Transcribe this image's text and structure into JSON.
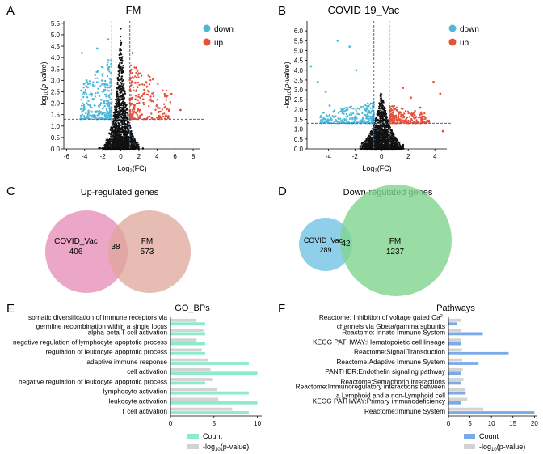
{
  "colors": {
    "down": "#4fb8d8",
    "up": "#e5513b",
    "ns": "#111111",
    "threshold": "#2f6fc0",
    "venn_cov_up": "#e68ab5",
    "venn_fm_up": "#dea59a",
    "venn_cov_down": "#7cc7e6",
    "venn_fm_down": "#7fd48f",
    "go_count": "#8eebc9",
    "go_log": "#d3d3d3",
    "pw_count": "#7aaaea",
    "pw_log": "#d3d3d3"
  },
  "panels": {
    "A": {
      "letter": "A",
      "title": "FM"
    },
    "B": {
      "letter": "B",
      "title": "COVID-19_Vac"
    },
    "C": {
      "letter": "C",
      "title": "Up-regulated genes"
    },
    "D": {
      "letter": "D",
      "title": "Down-regulated genes"
    },
    "E": {
      "letter": "E",
      "title": "GO_BPs"
    },
    "F": {
      "letter": "F",
      "title": "Pathways"
    }
  },
  "chart_data": [
    {
      "id": "A",
      "type": "scatter",
      "title": "FM",
      "xlabel": "Log2(FC)",
      "ylabel": "-log10(p-value)",
      "xlim": [
        -6.3,
        8.8
      ],
      "ylim": [
        0,
        5.6
      ],
      "xticks": [
        -6,
        -4,
        -2,
        0,
        2,
        4,
        6,
        8
      ],
      "yticks": [
        0.0,
        0.5,
        1.0,
        1.5,
        2.0,
        2.5,
        3.0,
        3.5,
        4.0,
        4.5,
        5.0,
        5.5
      ],
      "thresholds": {
        "x": [
          -1,
          1
        ],
        "y": 1.3
      },
      "legend": [
        "down",
        "up"
      ],
      "seed": 11,
      "spread": {
        "down_x": [
          -4.5,
          -1
        ],
        "up_x": [
          1,
          5.5
        ],
        "ns_x": [
          -5.2,
          6.2
        ],
        "peak_y": 5.4
      },
      "series": [
        {
          "name": "down",
          "points": [
            [
              -4.3,
              4.2
            ],
            [
              -3.8,
              3.0
            ],
            [
              -2.6,
              4.4
            ],
            [
              -2.1,
              3.6
            ],
            [
              -1.4,
              4.8
            ],
            [
              -3.2,
              2.4
            ],
            [
              -2.9,
              1.9
            ],
            [
              -1.7,
              2.7
            ]
          ]
        },
        {
          "name": "up",
          "points": [
            [
              1.3,
              4.2
            ],
            [
              2.5,
              2.4
            ],
            [
              3.4,
              2.1
            ],
            [
              4.1,
              1.8
            ],
            [
              5.6,
              2.4
            ],
            [
              6.6,
              1.7
            ],
            [
              2.1,
              3.3
            ],
            [
              1.6,
              2.9
            ]
          ]
        }
      ]
    },
    {
      "id": "B",
      "type": "scatter",
      "title": "COVID-19_Vac",
      "xlabel": "Log2(FC)",
      "ylabel": "-log10(p-value)",
      "xlim": [
        -5.6,
        4.9
      ],
      "ylim": [
        0,
        6.5
      ],
      "xticks": [
        -4,
        -2,
        0,
        2,
        4
      ],
      "yticks": [
        0.0,
        0.5,
        1.0,
        1.5,
        2.0,
        2.5,
        3.0,
        3.5,
        4.0,
        4.5,
        5.0,
        5.5,
        6.0
      ],
      "thresholds": {
        "x": [
          -0.58,
          0.58
        ],
        "y": 1.3
      },
      "legend": [
        "down",
        "up"
      ],
      "seed": 23,
      "spread": {
        "down_x": [
          -4.6,
          -0.58
        ],
        "up_x": [
          0.58,
          3.6
        ],
        "ns_x": [
          -5.0,
          4.2
        ],
        "peak_y": 3.2
      },
      "series": [
        {
          "name": "down",
          "points": [
            [
              -5.3,
              4.2
            ],
            [
              -4.8,
              3.4
            ],
            [
              -4.2,
              2.9
            ],
            [
              -3.3,
              5.5
            ],
            [
              -2.4,
              5.2
            ],
            [
              -3.9,
              2.2
            ],
            [
              -2.8,
              1.9
            ],
            [
              -1.9,
              4.0
            ]
          ]
        },
        {
          "name": "up",
          "points": [
            [
              3.9,
              3.4
            ],
            [
              4.4,
              2.8
            ],
            [
              4.6,
              0.9
            ],
            [
              2.2,
              2.6
            ],
            [
              1.6,
              3.1
            ],
            [
              2.9,
              2.1
            ],
            [
              1.2,
              1.9
            ],
            [
              3.3,
              1.6
            ]
          ]
        }
      ]
    },
    {
      "id": "E",
      "type": "bar",
      "orientation": "horizontal",
      "title": "GO_BPs",
      "xlim": [
        0,
        10.5
      ],
      "xticks": [
        0,
        5,
        10
      ],
      "categories": [
        "somatic diversification of immune receptors via germline recombination within a single locus",
        "alpha-beta T cell activation",
        "negative regulation of lymphocyte apoptotic process",
        "regulation of leukocyte apoptotic process",
        "adaptive immune response",
        "cell activation",
        "negative regulation of leukocyte apoptotic process",
        "lymphocyte activation",
        "leukocyte activation",
        "T cell activation"
      ],
      "series": [
        {
          "name": "Count",
          "values": [
            4,
            4,
            4,
            4,
            9,
            10,
            4,
            9,
            10,
            9
          ]
        },
        {
          "name": "-log10(p-value)",
          "values": [
            3.0,
            3.8,
            3.0,
            3.6,
            4.3,
            4.6,
            4.8,
            5.3,
            5.5,
            7.1
          ]
        }
      ]
    },
    {
      "id": "F",
      "type": "bar",
      "orientation": "horizontal",
      "title": "Pathways",
      "xlim": [
        0,
        20.5
      ],
      "xticks": [
        0,
        5,
        10,
        15,
        20
      ],
      "categories": [
        "Reactome: Inhibition of voltage gated Ca2+ channels via Gbeta/gamma subunits",
        "Reactome: Innate Immune System",
        "KEGG PATHWAY:Hematopoietic cell lineage",
        "Reactome:Signal Transduction",
        "Reactome:Adaptive Immune System",
        "PANTHER:Endothelin signaling pathway",
        "Reactome:Semaphorin interactions",
        "Reactome:Immunoregulatory interactions between a Lymphoid and a non-Lymphoid cell",
        "KEGG PATHWAY:Primary immunodeficiency",
        "Reactome:Immune System"
      ],
      "series": [
        {
          "name": "Count",
          "values": [
            2,
            8,
            3,
            14,
            7,
            3,
            3,
            4,
            3,
            20
          ]
        },
        {
          "name": "-log10(p-value)",
          "values": [
            3.0,
            3.0,
            3.0,
            3.1,
            3.2,
            3.3,
            3.5,
            3.8,
            4.4,
            8.1
          ]
        }
      ]
    }
  ],
  "venn": {
    "C": {
      "left_label": "COVID_Vac",
      "left_count": "406",
      "overlap": "38",
      "right_label": "FM",
      "right_count": "573"
    },
    "D": {
      "left_label": "COVID_Vac",
      "left_count": "289",
      "overlap": "42",
      "right_label": "FM",
      "right_count": "1237"
    }
  },
  "go_labels": [
    [
      "somatic diversification of immune receptors via",
      "germline recombination within a single locus"
    ],
    [
      "alpha-beta T cell activation"
    ],
    [
      "negative regulation of lymphocyte apoptotic process"
    ],
    [
      "regulation of leukocyte apoptotic process"
    ],
    [
      "adaptive immune response"
    ],
    [
      "cell activation"
    ],
    [
      "negative regulation of leukocyte apoptotic process"
    ],
    [
      "lymphocyte activation"
    ],
    [
      "leukocyte activation"
    ],
    [
      "T cell activation"
    ]
  ],
  "pw_labels": [
    [
      "Reactome: Inhibition of voltage gated Ca",
      "channels via Gbeta/gamma subunits"
    ],
    [
      "Reactome: Innate Immune System"
    ],
    [
      "KEGG PATHWAY:Hematopoietic cell lineage"
    ],
    [
      "Reactome:Signal Transduction"
    ],
    [
      "Reactome:Adaptive Immune System"
    ],
    [
      "PANTHER:Endothelin signaling pathway"
    ],
    [
      "Reactome:Semaphorin interactions"
    ],
    [
      "Reactome:Immunoregulatory interactions between",
      "a Lymphoid and a non-Lymphoid cell"
    ],
    [
      "KEGG PATHWAY:Primary immunodeficiency"
    ],
    [
      "Reactome:Immune System"
    ]
  ],
  "ca_superscript": "2+",
  "legend_count": "Count",
  "legend_log_prefix": "-log",
  "legend_log_sub": "10",
  "legend_log_suffix": "(p-value)",
  "volcano_ylabel": {
    "a": "-log",
    "sub": "10",
    "b": "(",
    "italic": "p-value",
    "c": ")"
  },
  "volcano_xlabel": {
    "a": "Log",
    "sub": "2",
    "b": "(FC)"
  }
}
